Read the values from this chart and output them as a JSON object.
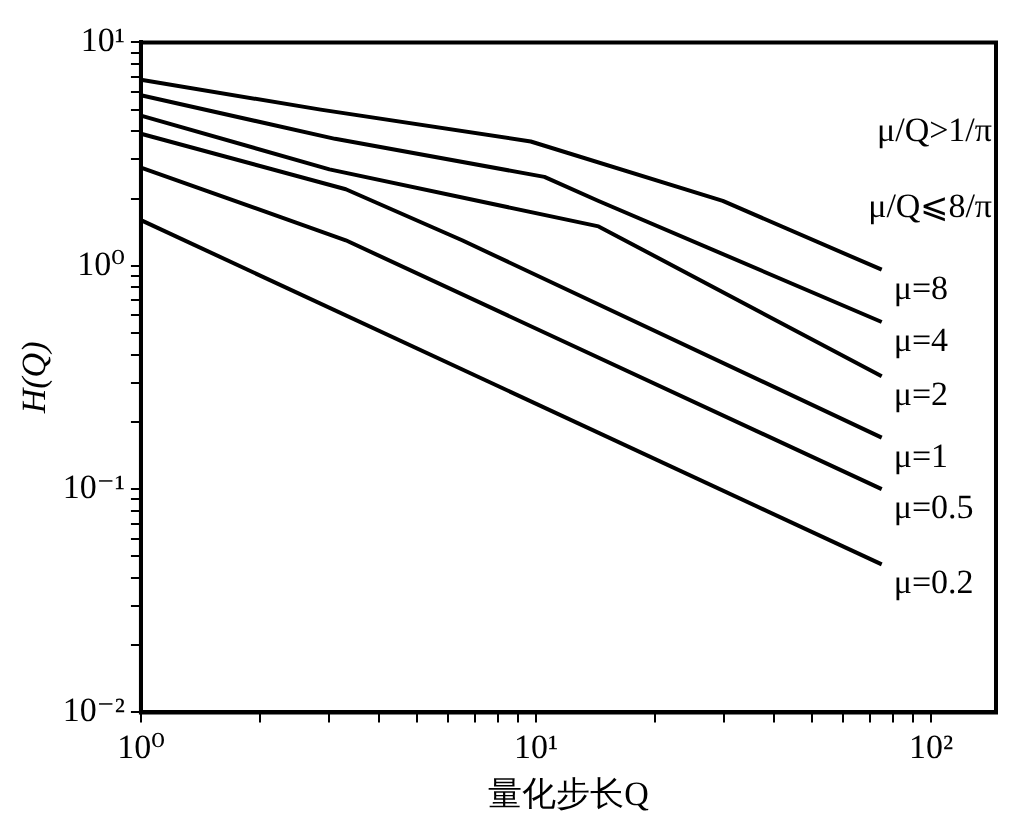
{
  "chart_data": {
    "type": "line",
    "xlabel": "量化步长Q",
    "ylabel": "H(Q)",
    "log": "xy",
    "xlim": [
      1,
      146
    ],
    "ylim": [
      0.01,
      10
    ],
    "xticks": [
      {
        "value": 1,
        "label": "10⁰"
      },
      {
        "value": 2,
        "label": null
      },
      {
        "value": 3,
        "label": null
      },
      {
        "value": 4,
        "label": null
      },
      {
        "value": 5,
        "label": null
      },
      {
        "value": 6,
        "label": null
      },
      {
        "value": 7,
        "label": null
      },
      {
        "value": 8,
        "label": null
      },
      {
        "value": 9,
        "label": null
      },
      {
        "value": 10,
        "label": "10¹"
      },
      {
        "value": 20,
        "label": null
      },
      {
        "value": 30,
        "label": null
      },
      {
        "value": 40,
        "label": null
      },
      {
        "value": 50,
        "label": null
      },
      {
        "value": 60,
        "label": null
      },
      {
        "value": 70,
        "label": null
      },
      {
        "value": 80,
        "label": null
      },
      {
        "value": 90,
        "label": null
      },
      {
        "value": 100,
        "label": "10²"
      }
    ],
    "yticks": [
      {
        "value": 0.01,
        "label": "10⁻²"
      },
      {
        "value": 0.02,
        "label": null
      },
      {
        "value": 0.03,
        "label": null
      },
      {
        "value": 0.04,
        "label": null
      },
      {
        "value": 0.05,
        "label": null
      },
      {
        "value": 0.06,
        "label": null
      },
      {
        "value": 0.07,
        "label": null
      },
      {
        "value": 0.08,
        "label": null
      },
      {
        "value": 0.09,
        "label": null
      },
      {
        "value": 0.1,
        "label": "10⁻¹"
      },
      {
        "value": 0.2,
        "label": null
      },
      {
        "value": 0.3,
        "label": null
      },
      {
        "value": 0.4,
        "label": null
      },
      {
        "value": 0.5,
        "label": null
      },
      {
        "value": 0.6,
        "label": null
      },
      {
        "value": 0.7,
        "label": null
      },
      {
        "value": 0.8,
        "label": null
      },
      {
        "value": 0.9,
        "label": null
      },
      {
        "value": 1,
        "label": "10⁰"
      },
      {
        "value": 2,
        "label": null
      },
      {
        "value": 3,
        "label": null
      },
      {
        "value": 4,
        "label": null
      },
      {
        "value": 5,
        "label": null
      },
      {
        "value": 6,
        "label": null
      },
      {
        "value": 7,
        "label": null
      },
      {
        "value": 8,
        "label": null
      },
      {
        "value": 9,
        "label": null
      },
      {
        "value": 10,
        "label": "10¹"
      }
    ],
    "grid": false,
    "legend": false,
    "marker": "none",
    "line_style": "solid",
    "annotations": [
      "μ/Q>1/π",
      "μ/Q⩽8/π"
    ],
    "series": [
      {
        "name": "μ=8",
        "color": "#000000",
        "x": [
          1,
          2.85,
          9.7,
          29.7,
          75
        ],
        "values": [
          6.8,
          5.0,
          3.6,
          1.95,
          0.96
        ]
      },
      {
        "name": "μ=4",
        "color": "#000000",
        "x": [
          1,
          3.1,
          10.5,
          14.4,
          75
        ],
        "values": [
          5.8,
          3.7,
          2.5,
          1.95,
          0.56
        ]
      },
      {
        "name": "μ=2",
        "color": "#000000",
        "x": [
          1,
          3.0,
          14.4,
          75
        ],
        "values": [
          4.7,
          2.7,
          1.5,
          0.32
        ]
      },
      {
        "name": "μ=1",
        "color": "#000000",
        "x": [
          1,
          3.3,
          6.5,
          75
        ],
        "values": [
          3.9,
          2.2,
          1.3,
          0.17
        ]
      },
      {
        "name": "μ=0.5",
        "color": "#000000",
        "x": [
          1,
          3.3,
          75
        ],
        "values": [
          2.75,
          1.3,
          0.1
        ]
      },
      {
        "name": "μ=0.2",
        "color": "#000000",
        "x": [
          1,
          75
        ],
        "values": [
          1.6,
          0.046
        ]
      }
    ]
  }
}
